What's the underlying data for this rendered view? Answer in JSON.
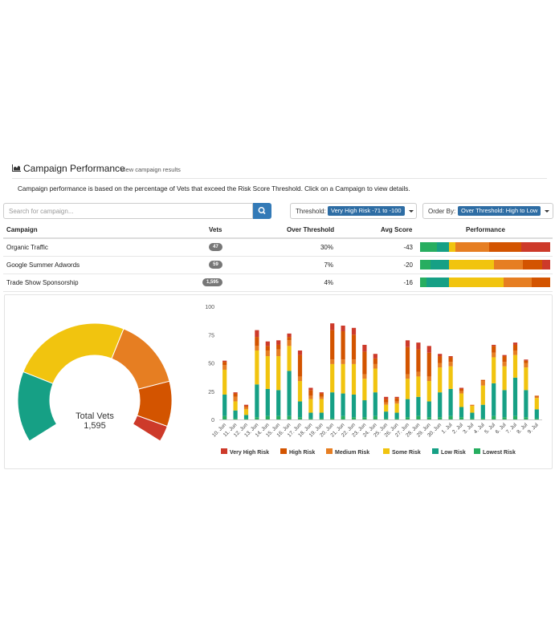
{
  "header": {
    "title": "Campaign Performance",
    "subtitle": "View campaign results"
  },
  "description": "Campaign performance is based on the percentage of Vets that exceed the Risk Score Threshold. Click on a Campaign to view details.",
  "search": {
    "placeholder": "Search for campaign..."
  },
  "threshold": {
    "label": "Threshold:",
    "value": "Very High Risk -71 to -100"
  },
  "order_by": {
    "label": "Order By:",
    "value": "Over Threshold: High to Low"
  },
  "table": {
    "columns": [
      "Campaign",
      "Vets",
      "Over Threshold",
      "Avg Score",
      "Performance"
    ],
    "rows": [
      {
        "campaign": "Organic Traffic",
        "vets": "47",
        "over_threshold": "30%",
        "avg_score": "-43",
        "performance": [
          13,
          9,
          5,
          26,
          25,
          22
        ]
      },
      {
        "campaign": "Google Summer Adwords",
        "vets": "59",
        "over_threshold": "7%",
        "avg_score": "-20",
        "performance": [
          8,
          14,
          35,
          22,
          15,
          6
        ]
      },
      {
        "campaign": "Trade Show Sponsorship",
        "vets": "1,595",
        "over_threshold": "4%",
        "avg_score": "-16",
        "performance": [
          5,
          17,
          42,
          22,
          14,
          0
        ]
      }
    ]
  },
  "colors": {
    "very_high_risk": "#cd3a2a",
    "high_risk": "#d35400",
    "medium_risk": "#e67e22",
    "some_risk": "#f1c40f",
    "low_risk": "#16a085",
    "lowest_risk": "#27ae60"
  },
  "donut": {
    "label": "Total Vets",
    "value": "1,595",
    "segments": [
      {
        "name": "Low Risk",
        "value": 22
      },
      {
        "name": "Some Risk",
        "value": 37
      },
      {
        "name": "Medium Risk",
        "value": 22
      },
      {
        "name": "High Risk",
        "value": 14
      },
      {
        "name": "Very High Risk",
        "value": 5
      }
    ]
  },
  "chart_data": {
    "type": "bar",
    "stacked": true,
    "ylim": [
      0,
      100
    ],
    "yticks": [
      0,
      25,
      50,
      75,
      100
    ],
    "categories": [
      "10. Jun",
      "11. Jun",
      "12. Jun",
      "13. Jun",
      "14. Jun",
      "15. Jun",
      "16. Jun",
      "17. Jun",
      "18. Jun",
      "19. Jun",
      "20. Jun",
      "21. Jun",
      "22. Jun",
      "23. Jun",
      "24. Jun",
      "25. Jun",
      "26. Jun",
      "27. Jun",
      "28. Jun",
      "29. Jun",
      "30. Jun",
      "1. Jul",
      "2. Jul",
      "3. Jul",
      "4. Jul",
      "5. Jul",
      "6. Jul",
      "7. Jul",
      "8. Jul",
      "9. Jul"
    ],
    "series": [
      {
        "name": "Lowest Risk",
        "values": [
          3,
          1,
          1,
          2,
          3,
          3,
          3,
          2,
          1,
          1,
          1,
          3,
          2,
          2,
          3,
          1,
          1,
          2,
          3,
          2,
          2,
          3,
          2,
          1,
          1,
          3,
          2,
          3,
          2,
          1
        ]
      },
      {
        "name": "Low Risk",
        "values": [
          19,
          7,
          3,
          29,
          24,
          23,
          40,
          14,
          5,
          5,
          23,
          20,
          20,
          15,
          21,
          6,
          5,
          16,
          17,
          14,
          22,
          24,
          9,
          5,
          12,
          29,
          24,
          34,
          24,
          8
        ]
      },
      {
        "name": "Some Risk",
        "values": [
          22,
          8,
          5,
          30,
          29,
          30,
          22,
          18,
          12,
          12,
          25,
          26,
          27,
          19,
          21,
          6,
          8,
          18,
          18,
          18,
          22,
          20,
          12,
          6,
          17,
          23,
          21,
          20,
          20,
          10
        ]
      },
      {
        "name": "Medium Risk",
        "values": [
          4,
          4,
          2,
          4,
          5,
          6,
          5,
          4,
          3,
          2,
          4,
          4,
          4,
          4,
          4,
          2,
          2,
          4,
          4,
          4,
          4,
          4,
          2,
          1,
          4,
          4,
          4,
          4,
          4,
          1
        ]
      },
      {
        "name": "High Risk",
        "values": [
          3,
          3,
          1,
          8,
          4,
          4,
          3,
          19,
          5,
          3,
          26,
          25,
          22,
          20,
          5,
          3,
          3,
          24,
          20,
          21,
          6,
          4,
          2,
          0,
          1,
          6,
          5,
          5,
          2,
          1
        ]
      },
      {
        "name": "Very High Risk",
        "values": [
          1,
          1,
          1,
          6,
          4,
          4,
          3,
          4,
          2,
          1,
          6,
          5,
          6,
          6,
          4,
          2,
          1,
          6,
          6,
          6,
          2,
          1,
          1,
          0,
          0,
          1,
          1,
          2,
          1,
          0
        ]
      }
    ]
  }
}
